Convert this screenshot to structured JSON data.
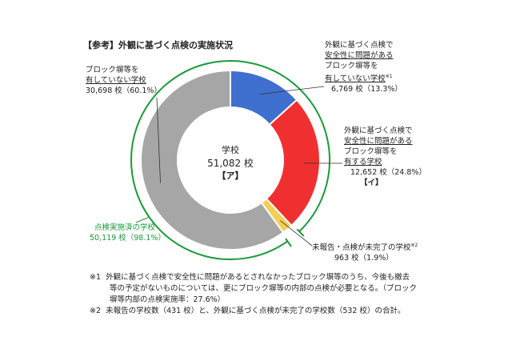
{
  "chart_data": {
    "type": "pie",
    "variant": "donut",
    "title": "【参考】外観に基づく点検の実施状況",
    "total_label": "学校",
    "total_value": "51,082 校",
    "total_tag": "【ア】",
    "slices": [
      {
        "key": "blue",
        "label_lines": [
          "外観に基づく点検で",
          "安全性に問題がある",
          "ブロック塀等を",
          "有していない学校"
        ],
        "note_mark": "※1",
        "count": 6769,
        "value_text": "6,769 校（13.3%）",
        "percent": 13.3,
        "color": "#3f6fcf"
      },
      {
        "key": "red",
        "label_lines": [
          "外観に基づく点検で",
          "安全性に問題がある",
          "ブロック塀等を",
          "有する学校"
        ],
        "count": 12652,
        "value_text": "12,652 校（24.8%）",
        "tag": "【イ】",
        "percent": 24.8,
        "color": "#f03030"
      },
      {
        "key": "yellow",
        "label_lines": [
          "未報告・点検が未完了の学校"
        ],
        "note_mark": "※2",
        "count": 963,
        "value_text": "963 校（1.9%）",
        "percent": 1.9,
        "color": "#f2cf55"
      },
      {
        "key": "gray",
        "label_lines": [
          "ブロック塀等を",
          "有していない学校"
        ],
        "count": 30698,
        "value_text": "30,698 校（60.1%）",
        "percent": 60.1,
        "color": "#a6a6a6"
      }
    ],
    "outer_arc": {
      "label": "点検実施済の学校",
      "value_text": "50,119 校（98.1%）",
      "percent": 98.1,
      "color": "#1a9a3a"
    }
  },
  "notes": [
    {
      "mark": "※1",
      "lines": [
        "外観に基づく点検で安全性に問題があるとされなかったブロック塀等のうち、今後も撤去",
        "等の予定がないものについては、更にブロック塀等の内部の点検が必要となる。（ブロック",
        "塀等内部の点検実施率：27.6%）"
      ]
    },
    {
      "mark": "※2",
      "lines": [
        "未報告の学校数（431 校）と、外観に基づく点検が未完了の学校数（532 校）の合計。"
      ]
    }
  ]
}
